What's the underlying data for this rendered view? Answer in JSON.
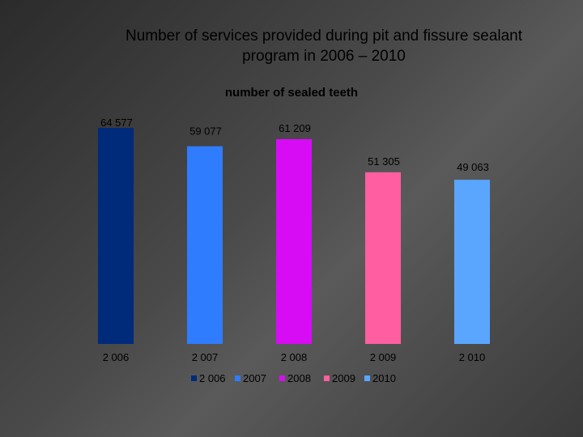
{
  "slide": {
    "title_line1": "Number of services provided during pit and fissure sealant",
    "title_line2": "program in 2006 – 2010"
  },
  "chart_data": {
    "type": "bar",
    "title": "number of sealed teeth",
    "categories": [
      "2 006",
      "2 007",
      "2 008",
      "2 009",
      "2 010"
    ],
    "values": [
      64577,
      59077,
      61209,
      51305,
      49063
    ],
    "data_labels": [
      "64 577",
      "59 077",
      "61 209",
      "51 305",
      "49 063"
    ],
    "colors": [
      "#002a7a",
      "#2f7cff",
      "#d80cf4",
      "#ff5fa0",
      "#5aa6ff"
    ],
    "legend": [
      "2 006",
      "2007",
      "2008",
      "2009",
      "2010"
    ],
    "legend_position": "bottom",
    "ylim": [
      0,
      64577
    ],
    "grid": false
  }
}
